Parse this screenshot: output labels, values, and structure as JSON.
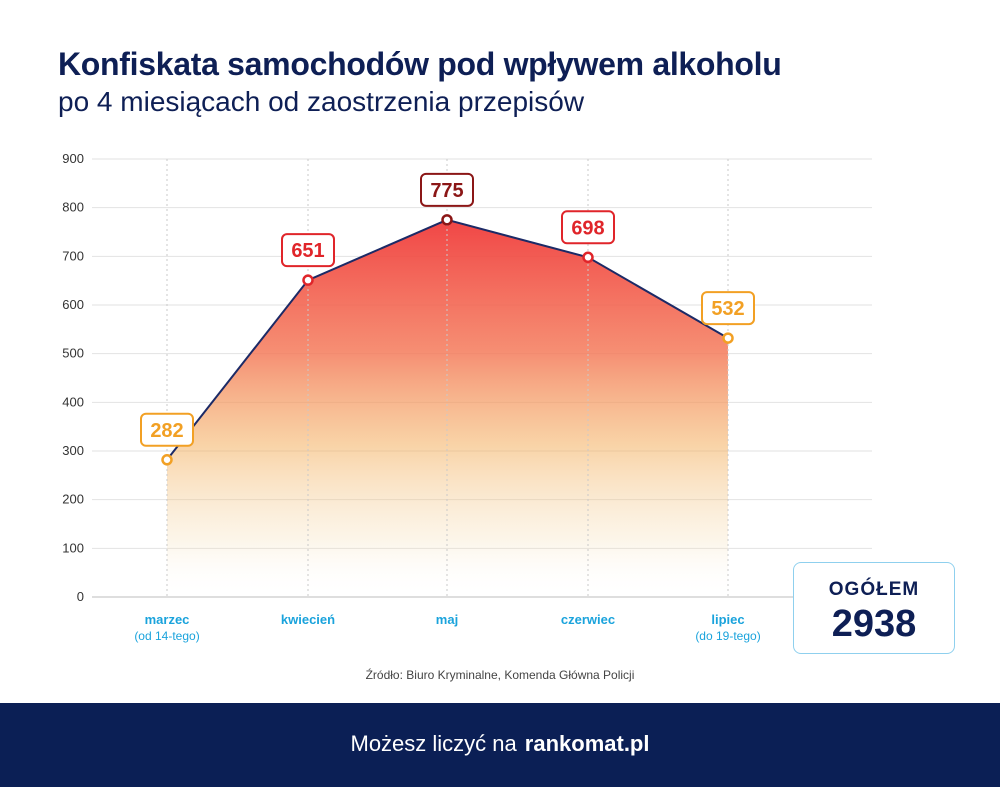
{
  "title": "Konfiskata samochodów pod wpływem alkoholu",
  "subtitle": "po 4 miesiącach od zaostrzenia przepisów",
  "source": "Źródło: Biuro Kryminalne, Komenda Główna Policji",
  "total": {
    "label": "OGÓŁEM",
    "value": "2938"
  },
  "footer": {
    "text": "Możesz liczyć na",
    "brand": "rankomat.pl"
  },
  "colors": {
    "navy": "#0e1f55",
    "red": "#e0252a",
    "darkred": "#8b1616",
    "orange": "#f2a024",
    "blue": "#1aa3dc"
  },
  "chart_data": {
    "type": "area",
    "title": "Konfiskata samochodów pod wpływem alkoholu",
    "categories": [
      "marzec",
      "kwiecień",
      "maj",
      "czerwiec",
      "lipiec"
    ],
    "category_notes": [
      "(od 14-tego)",
      "",
      "",
      "",
      "(do 19-tego)"
    ],
    "values": [
      282,
      651,
      775,
      698,
      532
    ],
    "label_styles": [
      "orange",
      "red",
      "darkred",
      "red",
      "orange"
    ],
    "ylim": [
      0,
      900
    ],
    "yticks": [
      0,
      100,
      200,
      300,
      400,
      500,
      600,
      700,
      800,
      900
    ],
    "grid": true
  }
}
